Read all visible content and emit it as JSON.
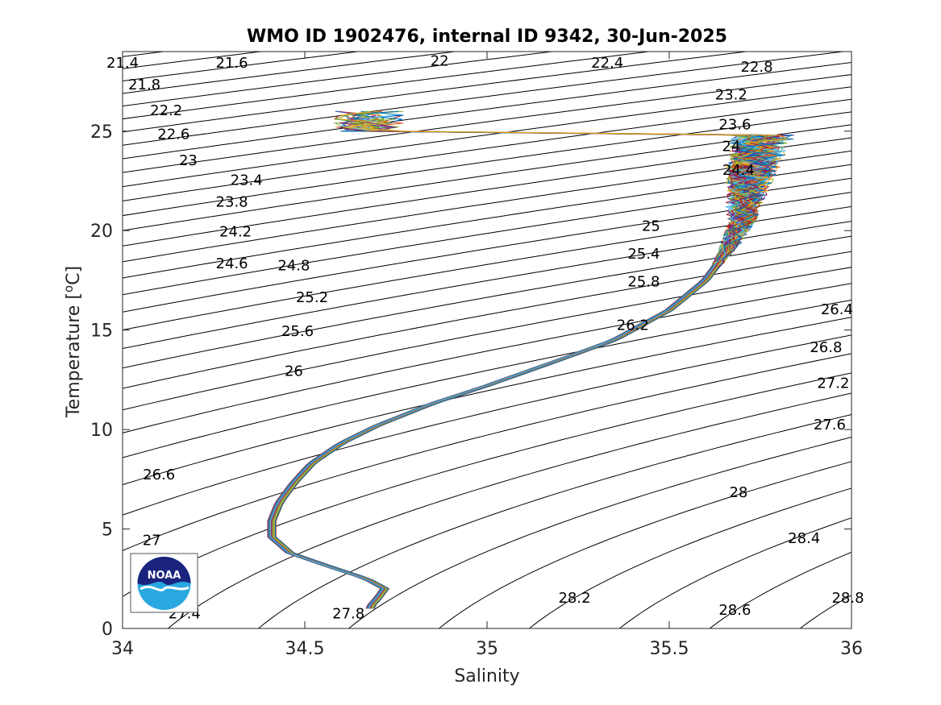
{
  "chart_data": {
    "type": "line",
    "title": "WMO ID 1902476, internal ID 9342, 30-Jun-2025",
    "xlabel": "Salinity",
    "ylabel": "Temperature [°C]",
    "ylabel_main": "Temperature [",
    "ylabel_sup": "o",
    "ylabel_end": "C]",
    "xlim": [
      34,
      36
    ],
    "ylim": [
      0,
      29
    ],
    "xticks": [
      34,
      34.5,
      35,
      35.5,
      36
    ],
    "xtick_labels": [
      "34",
      "34.5",
      "35",
      "35.5",
      "36"
    ],
    "yticks": [
      0,
      5,
      10,
      15,
      20,
      25
    ],
    "ytick_labels": [
      "0",
      "5",
      "10",
      "15",
      "20",
      "25"
    ],
    "grid": false,
    "legend": "none",
    "density_contours": {
      "color": "#000000",
      "levels": [
        "21.4",
        "21.6",
        "21.8",
        "22",
        "22.2",
        "22.4",
        "22.6",
        "22.8",
        "23",
        "23.2",
        "23.4",
        "23.6",
        "23.8",
        "24",
        "24.2",
        "24.4",
        "24.6",
        "24.8",
        "25",
        "25.2",
        "25.4",
        "25.6",
        "25.8",
        "26",
        "26.2",
        "26.4",
        "26.6",
        "26.8",
        "27",
        "27.2",
        "27.4",
        "27.6",
        "27.8",
        "28",
        "28.2",
        "28.4",
        "28.6",
        "28.8"
      ],
      "labels": [
        {
          "text": "21.4",
          "s": 34.0,
          "t": 28.4
        },
        {
          "text": "21.6",
          "s": 34.3,
          "t": 28.4
        },
        {
          "text": "22",
          "s": 34.87,
          "t": 28.5
        },
        {
          "text": "22.4",
          "s": 35.33,
          "t": 28.4
        },
        {
          "text": "22.8",
          "s": 35.74,
          "t": 28.2
        },
        {
          "text": "21.8",
          "s": 34.06,
          "t": 27.3
        },
        {
          "text": "22.2",
          "s": 34.12,
          "t": 26.0
        },
        {
          "text": "23.2",
          "s": 35.67,
          "t": 26.8
        },
        {
          "text": "22.6",
          "s": 34.14,
          "t": 24.8
        },
        {
          "text": "23.6",
          "s": 35.68,
          "t": 25.3
        },
        {
          "text": "23",
          "s": 34.18,
          "t": 23.5
        },
        {
          "text": "24",
          "s": 35.67,
          "t": 24.2
        },
        {
          "text": "23.4",
          "s": 34.34,
          "t": 22.5
        },
        {
          "text": "24.4",
          "s": 35.69,
          "t": 23.0
        },
        {
          "text": "23.8",
          "s": 34.3,
          "t": 21.4
        },
        {
          "text": "25",
          "s": 35.45,
          "t": 20.2
        },
        {
          "text": "24.2",
          "s": 34.31,
          "t": 19.9
        },
        {
          "text": "25.4",
          "s": 35.43,
          "t": 18.8
        },
        {
          "text": "24.6",
          "s": 34.3,
          "t": 18.3
        },
        {
          "text": "24.8",
          "s": 34.47,
          "t": 18.2
        },
        {
          "text": "25.8",
          "s": 35.43,
          "t": 17.4
        },
        {
          "text": "25.2",
          "s": 34.52,
          "t": 16.6
        },
        {
          "text": "26.4",
          "s": 35.96,
          "t": 16.0
        },
        {
          "text": "26.2",
          "s": 35.4,
          "t": 15.2
        },
        {
          "text": "25.6",
          "s": 34.48,
          "t": 14.9
        },
        {
          "text": "26.8",
          "s": 35.93,
          "t": 14.1
        },
        {
          "text": "26",
          "s": 34.47,
          "t": 12.9
        },
        {
          "text": "27.2",
          "s": 35.95,
          "t": 12.3
        },
        {
          "text": "27.6",
          "s": 35.94,
          "t": 10.2
        },
        {
          "text": "26.6",
          "s": 34.1,
          "t": 7.7
        },
        {
          "text": "28",
          "s": 35.69,
          "t": 6.8
        },
        {
          "text": "27",
          "s": 34.08,
          "t": 4.4
        },
        {
          "text": "28.4",
          "s": 35.87,
          "t": 4.5
        },
        {
          "text": "28.2",
          "s": 35.24,
          "t": 1.5
        },
        {
          "text": "28.8",
          "s": 35.99,
          "t": 1.5
        },
        {
          "text": "28.6",
          "s": 35.68,
          "t": 0.9
        },
        {
          "text": "27.4",
          "s": 34.17,
          "t": 0.7
        },
        {
          "text": "27.8",
          "s": 34.62,
          "t": 0.7
        }
      ]
    },
    "profiles": {
      "count_approx": 120,
      "mean_curve": [
        [
          35.76,
          25.0
        ],
        [
          35.72,
          22.5
        ],
        [
          35.7,
          20.5
        ],
        [
          35.66,
          19.0
        ],
        [
          35.6,
          17.5
        ],
        [
          35.5,
          16.0
        ],
        [
          35.35,
          14.5
        ],
        [
          35.2,
          13.5
        ],
        [
          35.0,
          12.2
        ],
        [
          34.85,
          11.3
        ],
        [
          34.7,
          10.2
        ],
        [
          34.6,
          9.3
        ],
        [
          34.52,
          8.3
        ],
        [
          34.47,
          7.3
        ],
        [
          34.43,
          6.3
        ],
        [
          34.41,
          5.4
        ],
        [
          34.41,
          4.6
        ],
        [
          34.46,
          3.8
        ],
        [
          34.57,
          3.1
        ],
        [
          34.67,
          2.5
        ],
        [
          34.72,
          2.0
        ],
        [
          34.7,
          1.5
        ],
        [
          34.68,
          1.1
        ]
      ],
      "spread_S": 0.012,
      "surface_spread_S": 0.1,
      "surface_spread_T": 2.0
    },
    "series_colors": [
      "#0072BD",
      "#D95319",
      "#EDB120",
      "#7E2F8E",
      "#77AC30",
      "#4DBEEE",
      "#A2142F"
    ]
  },
  "logo": {
    "text": "NOAA",
    "colors": {
      "navy": "#1a237e",
      "sky": "#29a8e0",
      "white": "#ffffff"
    }
  }
}
